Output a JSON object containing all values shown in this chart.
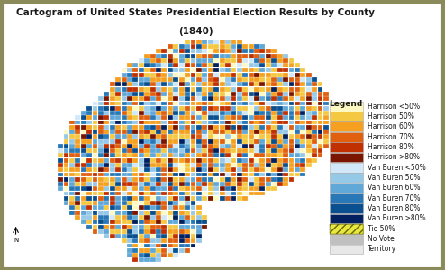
{
  "title": "Cartogram of United States Presidential Election Results by County",
  "subtitle": "(1840)",
  "background_color": "#ffffff",
  "map_bg": "#ffffff",
  "legend_title": "Legend",
  "legend_items": [
    {
      "label": "Harrison <50%",
      "facecolor": "#fef9c3",
      "hatch": null,
      "edgecolor": "#aaaaaa"
    },
    {
      "label": "Harrison 50%",
      "facecolor": "#f5c842",
      "hatch": null,
      "edgecolor": "#aaaaaa"
    },
    {
      "label": "Harrison 60%",
      "facecolor": "#f5a020",
      "hatch": null,
      "edgecolor": "#aaaaaa"
    },
    {
      "label": "Harrison 70%",
      "facecolor": "#e06010",
      "hatch": null,
      "edgecolor": "#aaaaaa"
    },
    {
      "label": "Harrison 80%",
      "facecolor": "#c03000",
      "hatch": null,
      "edgecolor": "#aaaaaa"
    },
    {
      "label": "Harrison >80%",
      "facecolor": "#7a1500",
      "hatch": null,
      "edgecolor": "#aaaaaa"
    },
    {
      "label": "Van Buren <50%",
      "facecolor": "#d0e8f8",
      "hatch": null,
      "edgecolor": "#aaaaaa"
    },
    {
      "label": "Van Buren 50%",
      "facecolor": "#96c8e8",
      "hatch": null,
      "edgecolor": "#aaaaaa"
    },
    {
      "label": "Van Buren 60%",
      "facecolor": "#60a8d8",
      "hatch": null,
      "edgecolor": "#aaaaaa"
    },
    {
      "label": "Van Buren 70%",
      "facecolor": "#2878b8",
      "hatch": null,
      "edgecolor": "#aaaaaa"
    },
    {
      "label": "Van Buren 80%",
      "facecolor": "#0a4f90",
      "hatch": null,
      "edgecolor": "#aaaaaa"
    },
    {
      "label": "Van Buren >80%",
      "facecolor": "#002060",
      "hatch": null,
      "edgecolor": "#aaaaaa"
    },
    {
      "label": "Tie 50%",
      "facecolor": "#e8e840",
      "hatch": "////",
      "edgecolor": "#888800"
    },
    {
      "label": "No Vote",
      "facecolor": "#c0c0c0",
      "hatch": null,
      "edgecolor": "#aaaaaa"
    },
    {
      "label": "Territory",
      "facecolor": "#e8e8e8",
      "hatch": null,
      "edgecolor": "#aaaaaa"
    }
  ],
  "harrison_colors": [
    "#fef9c3",
    "#f5c842",
    "#f5a020",
    "#e06010",
    "#c03000",
    "#7a1500"
  ],
  "harrison_probs": [
    0.08,
    0.22,
    0.28,
    0.22,
    0.13,
    0.07
  ],
  "vanburen_colors": [
    "#d0e8f8",
    "#96c8e8",
    "#60a8d8",
    "#2878b8",
    "#0a4f90",
    "#002060"
  ],
  "vanburen_probs": [
    0.08,
    0.22,
    0.28,
    0.22,
    0.13,
    0.07
  ],
  "title_fontsize": 7.5,
  "subtitle_fontsize": 7.5,
  "legend_fontsize": 5.5,
  "legend_title_fontsize": 6.5,
  "border_color": "#8a8a5a",
  "border_lw": 3.0
}
